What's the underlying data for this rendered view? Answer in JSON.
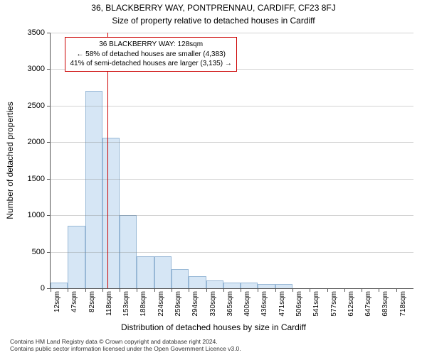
{
  "title_main": "36, BLACKBERRY WAY, PONTPRENNAU, CARDIFF, CF23 8FJ",
  "title_sub": "Size of property relative to detached houses in Cardiff",
  "ylabel": "Number of detached properties",
  "xlabel": "Distribution of detached houses by size in Cardiff",
  "chart": {
    "type": "histogram",
    "ylim": [
      0,
      3500
    ],
    "ytick_step": 500,
    "yticks": [
      0,
      500,
      1000,
      1500,
      2000,
      2500,
      3000,
      3500
    ],
    "x_bin_width": 35,
    "x_start": 12,
    "categories": [
      "12sqm",
      "47sqm",
      "82sqm",
      "118sqm",
      "153sqm",
      "188sqm",
      "224sqm",
      "259sqm",
      "294sqm",
      "330sqm",
      "365sqm",
      "400sqm",
      "436sqm",
      "471sqm",
      "506sqm",
      "541sqm",
      "577sqm",
      "612sqm",
      "647sqm",
      "683sqm",
      "718sqm"
    ],
    "values": [
      80,
      860,
      2700,
      2060,
      1000,
      440,
      440,
      260,
      170,
      110,
      80,
      80,
      60,
      60,
      0,
      0,
      0,
      0,
      0,
      0,
      0
    ],
    "bar_fill": "#d6e6f5",
    "bar_stroke": "#98b8d6",
    "grid_color": "#808080",
    "axis_color": "#555555",
    "background": "#ffffff",
    "tick_fontsize": 10,
    "label_fontsize": 12
  },
  "marker": {
    "value_sqm": 128,
    "line_color": "#cc0000",
    "callout_lines": [
      "36 BLACKBERRY WAY: 128sqm",
      "← 58% of detached houses are smaller (4,383)",
      "41% of semi-detached houses are larger (3,135) →"
    ]
  },
  "footer": {
    "line1": "Contains HM Land Registry data © Crown copyright and database right 2024.",
    "line2": "Contains public sector information licensed under the Open Government Licence v3.0."
  }
}
